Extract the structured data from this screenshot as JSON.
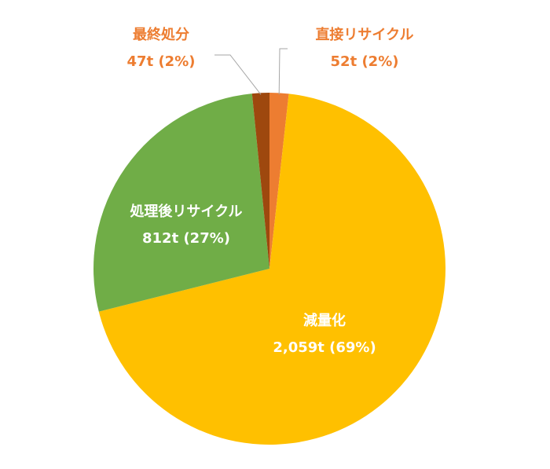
{
  "chart_data": {
    "type": "pie",
    "title": "",
    "categories": [
      "直接リサイクル",
      "減量化",
      "処理後リサイクル",
      "最終処分"
    ],
    "values": [
      52,
      2059,
      812,
      47
    ],
    "unit": "t",
    "slices": [
      {
        "name": "直接リサイクル",
        "value": 52,
        "value_label": "52t (2%)",
        "color": "#ED7D31"
      },
      {
        "name": "減量化",
        "value": 2059,
        "value_label": "2,059t (69%)",
        "color": "#FFC000"
      },
      {
        "name": "処理後リサイクル",
        "value": 812,
        "value_label": "812t (27%)",
        "color": "#70AD47"
      },
      {
        "name": "最終処分",
        "value": 47,
        "value_label": "47t (2%)",
        "color": "#9E480E"
      }
    ],
    "start_angle_deg": 0,
    "direction": "clockwise",
    "legend": "none"
  }
}
